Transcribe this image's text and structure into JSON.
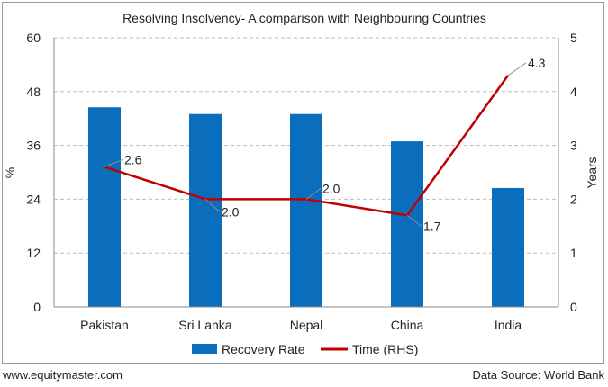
{
  "chart_data": {
    "type": "bar",
    "title": "Resolving Insolvency- A comparison with Neighbouring Countries",
    "categories": [
      "Pakistan",
      "Sri Lanka",
      "Nepal",
      "China",
      "India"
    ],
    "series": [
      {
        "name": "Recovery Rate",
        "type": "bar",
        "axis": "left",
        "color": "#0a6ebd",
        "values": [
          44.5,
          43.0,
          43.0,
          36.9,
          26.5
        ]
      },
      {
        "name": "Time (RHS)",
        "type": "line",
        "axis": "right",
        "color": "#c00000",
        "values": [
          2.6,
          2.0,
          2.0,
          1.7,
          4.3
        ],
        "labels": [
          "2.6",
          "2.0",
          "2.0",
          "1.7",
          "4.3"
        ]
      }
    ],
    "ylabel": "%",
    "y2label": "Years",
    "ylim": [
      0,
      60
    ],
    "y2lim": [
      0,
      5
    ],
    "yticks": [
      "0",
      "12",
      "24",
      "36",
      "48",
      "60"
    ],
    "y2ticks": [
      "0",
      "1",
      "2",
      "3",
      "4",
      "5"
    ],
    "grid": true,
    "legend_position": "bottom"
  },
  "footer": {
    "source_site": "www.equitymaster.com",
    "data_source": "Data Source: World Bank"
  }
}
